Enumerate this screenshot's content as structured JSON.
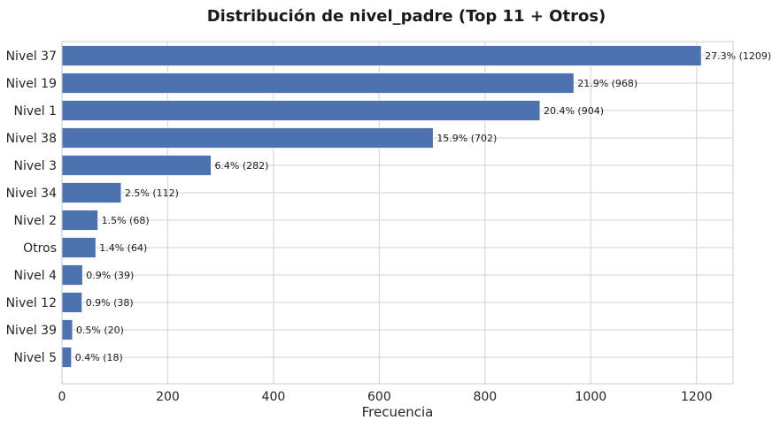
{
  "chart_data": {
    "type": "bar",
    "orientation": "horizontal",
    "title": "Distribución de nivel_padre (Top 11 + Otros)",
    "xlabel": "Frecuencia",
    "ylabel": "",
    "xlim": [
      0,
      1269
    ],
    "xticks": [
      0,
      200,
      400,
      600,
      800,
      1000,
      1200
    ],
    "grid": true,
    "bar_color": "#4c72b0",
    "categories": [
      "Nivel 37",
      "Nivel 19",
      "Nivel 1",
      "Nivel 38",
      "Nivel 3",
      "Nivel 34",
      "Nivel 2",
      "Otros",
      "Nivel 4",
      "Nivel 12",
      "Nivel 39",
      "Nivel 5"
    ],
    "values": [
      1209,
      968,
      904,
      702,
      282,
      112,
      68,
      64,
      39,
      38,
      20,
      18
    ],
    "data_labels": [
      "27.3% (1209)",
      "21.9% (968)",
      "20.4% (904)",
      "15.9% (702)",
      "6.4% (282)",
      "2.5% (112)",
      "1.5% (68)",
      "1.4% (64)",
      "0.9% (39)",
      "0.9% (38)",
      "0.5% (20)",
      "0.4% (18)"
    ]
  }
}
